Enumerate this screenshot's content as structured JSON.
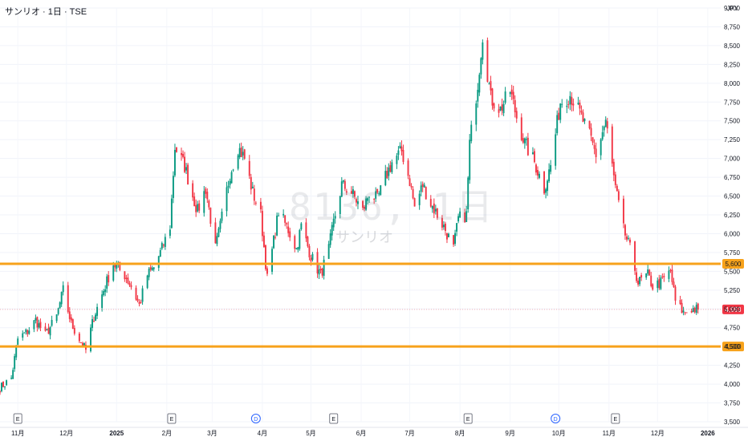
{
  "header": {
    "title": "サンリオ · 1日 · TSE",
    "currency": "JPY"
  },
  "watermark": {
    "symbol": "8136, 1日",
    "name": "サンリオ"
  },
  "colors": {
    "up": "#089981",
    "down": "#f23645",
    "level": "#f7a21b",
    "last": "#f23645"
  },
  "chart_data": {
    "type": "candlestick",
    "ylim": [
      3500,
      9000
    ],
    "yticks": [
      "3,500",
      "3,750",
      "4,000",
      "4,250",
      "4,500",
      "4,750",
      "5,000",
      "5,250",
      "5,500",
      "5,750",
      "6,000",
      "6,250",
      "6,500",
      "6,750",
      "7,000",
      "7,250",
      "7,500",
      "7,750",
      "8,000",
      "8,250",
      "8,500",
      "8,750",
      "9,000"
    ],
    "ytick_values": [
      3500,
      3750,
      4000,
      4250,
      4500,
      4750,
      5000,
      5250,
      5500,
      5750,
      6000,
      6250,
      6500,
      6750,
      7000,
      7250,
      7500,
      7750,
      8000,
      8250,
      8500,
      8750,
      9000
    ],
    "xlim": [
      "2024-10-21",
      "2026-01-09"
    ],
    "xticks": [
      {
        "label": "11月",
        "date": "2024-11-01"
      },
      {
        "label": "12月",
        "date": "2024-12-01"
      },
      {
        "label": "2025",
        "date": "2025-01-01"
      },
      {
        "label": "2月",
        "date": "2025-02-01"
      },
      {
        "label": "3月",
        "date": "2025-03-01"
      },
      {
        "label": "4月",
        "date": "2025-04-01"
      },
      {
        "label": "5月",
        "date": "2025-05-01"
      },
      {
        "label": "6月",
        "date": "2025-06-01"
      },
      {
        "label": "7月",
        "date": "2025-07-01"
      },
      {
        "label": "8月",
        "date": "2025-08-01"
      },
      {
        "label": "9月",
        "date": "2025-09-01"
      },
      {
        "label": "10月",
        "date": "2025-10-01"
      },
      {
        "label": "11月",
        "date": "2025-11-01"
      },
      {
        "label": "12月",
        "date": "2025-12-01"
      },
      {
        "label": "2026",
        "date": "2026-01-01"
      }
    ],
    "levels": [
      {
        "value": 5600,
        "label": "5,600"
      },
      {
        "value": 4500,
        "label": "4,500"
      }
    ],
    "last_price": {
      "value": 4993,
      "label": "4,993"
    },
    "events": [
      {
        "type": "E",
        "date": "2024-11-01"
      },
      {
        "type": "E",
        "date": "2025-02-04"
      },
      {
        "type": "D",
        "date": "2025-03-28"
      },
      {
        "type": "E",
        "date": "2025-05-15"
      },
      {
        "type": "E",
        "date": "2025-08-06"
      },
      {
        "type": "D",
        "date": "2025-09-29"
      },
      {
        "type": "E",
        "date": "2025-11-05"
      }
    ],
    "anchors": [
      [
        "2024-10-21",
        3950
      ],
      [
        "2024-10-28",
        4080
      ],
      [
        "2024-11-01",
        4600
      ],
      [
        "2024-11-07",
        4700
      ],
      [
        "2024-11-12",
        4850
      ],
      [
        "2024-11-18",
        4650
      ],
      [
        "2024-11-25",
        4900
      ],
      [
        "2024-11-29",
        5250
      ],
      [
        "2024-12-04",
        4800
      ],
      [
        "2024-12-09",
        4600
      ],
      [
        "2024-12-13",
        4450
      ],
      [
        "2024-12-18",
        4900
      ],
      [
        "2024-12-24",
        5250
      ],
      [
        "2024-12-30",
        5600
      ],
      [
        "2025-01-06",
        5450
      ],
      [
        "2025-01-10",
        5300
      ],
      [
        "2025-01-15",
        5050
      ],
      [
        "2025-01-20",
        5450
      ],
      [
        "2025-01-24",
        5550
      ],
      [
        "2025-01-29",
        5800
      ],
      [
        "2025-02-03",
        6100
      ],
      [
        "2025-02-06",
        7150
      ],
      [
        "2025-02-12",
        6900
      ],
      [
        "2025-02-17",
        6500
      ],
      [
        "2025-02-20",
        6300
      ],
      [
        "2025-02-25",
        6600
      ],
      [
        "2025-03-03",
        5800
      ],
      [
        "2025-03-06",
        6100
      ],
      [
        "2025-03-12",
        6800
      ],
      [
        "2025-03-17",
        7150
      ],
      [
        "2025-03-21",
        7000
      ],
      [
        "2025-03-26",
        6550
      ],
      [
        "2025-03-31",
        6250
      ],
      [
        "2025-04-04",
        5400
      ],
      [
        "2025-04-08",
        5900
      ],
      [
        "2025-04-11",
        6300
      ],
      [
        "2025-04-17",
        6050
      ],
      [
        "2025-04-22",
        5800
      ],
      [
        "2025-04-25",
        6100
      ],
      [
        "2025-05-01",
        5700
      ],
      [
        "2025-05-07",
        5450
      ],
      [
        "2025-05-12",
        5800
      ],
      [
        "2025-05-15",
        6150
      ],
      [
        "2025-05-20",
        6650
      ],
      [
        "2025-05-26",
        6550
      ],
      [
        "2025-06-02",
        6300
      ],
      [
        "2025-06-06",
        6550
      ],
      [
        "2025-06-11",
        6450
      ],
      [
        "2025-06-16",
        6750
      ],
      [
        "2025-06-20",
        6950
      ],
      [
        "2025-06-26",
        7100
      ],
      [
        "2025-07-01",
        6700
      ],
      [
        "2025-07-04",
        6350
      ],
      [
        "2025-07-09",
        6650
      ],
      [
        "2025-07-14",
        6400
      ],
      [
        "2025-07-18",
        6250
      ],
      [
        "2025-07-23",
        6050
      ],
      [
        "2025-07-28",
        5800
      ],
      [
        "2025-07-31",
        6200
      ],
      [
        "2025-08-05",
        6250
      ],
      [
        "2025-08-07",
        7200
      ],
      [
        "2025-08-12",
        8000
      ],
      [
        "2025-08-15",
        8650
      ],
      [
        "2025-08-20",
        7800
      ],
      [
        "2025-08-26",
        7650
      ],
      [
        "2025-09-01",
        7900
      ],
      [
        "2025-09-05",
        7550
      ],
      [
        "2025-09-10",
        7200
      ],
      [
        "2025-09-16",
        6950
      ],
      [
        "2025-09-22",
        6600
      ],
      [
        "2025-09-26",
        6900
      ],
      [
        "2025-10-02",
        7750
      ],
      [
        "2025-10-08",
        7850
      ],
      [
        "2025-10-14",
        7600
      ],
      [
        "2025-10-20",
        7300
      ],
      [
        "2025-10-24",
        7050
      ],
      [
        "2025-10-30",
        7500
      ],
      [
        "2025-11-05",
        6600
      ],
      [
        "2025-11-10",
        6050
      ],
      [
        "2025-11-14",
        5800
      ],
      [
        "2025-11-19",
        5350
      ],
      [
        "2025-11-25",
        5450
      ],
      [
        "2025-11-28",
        5300
      ],
      [
        "2025-12-03",
        5350
      ],
      [
        "2025-12-09",
        5500
      ],
      [
        "2025-12-12",
        5100
      ],
      [
        "2025-12-17",
        4950
      ],
      [
        "2025-12-22",
        5000
      ],
      [
        "2025-12-26",
        4993
      ]
    ]
  }
}
